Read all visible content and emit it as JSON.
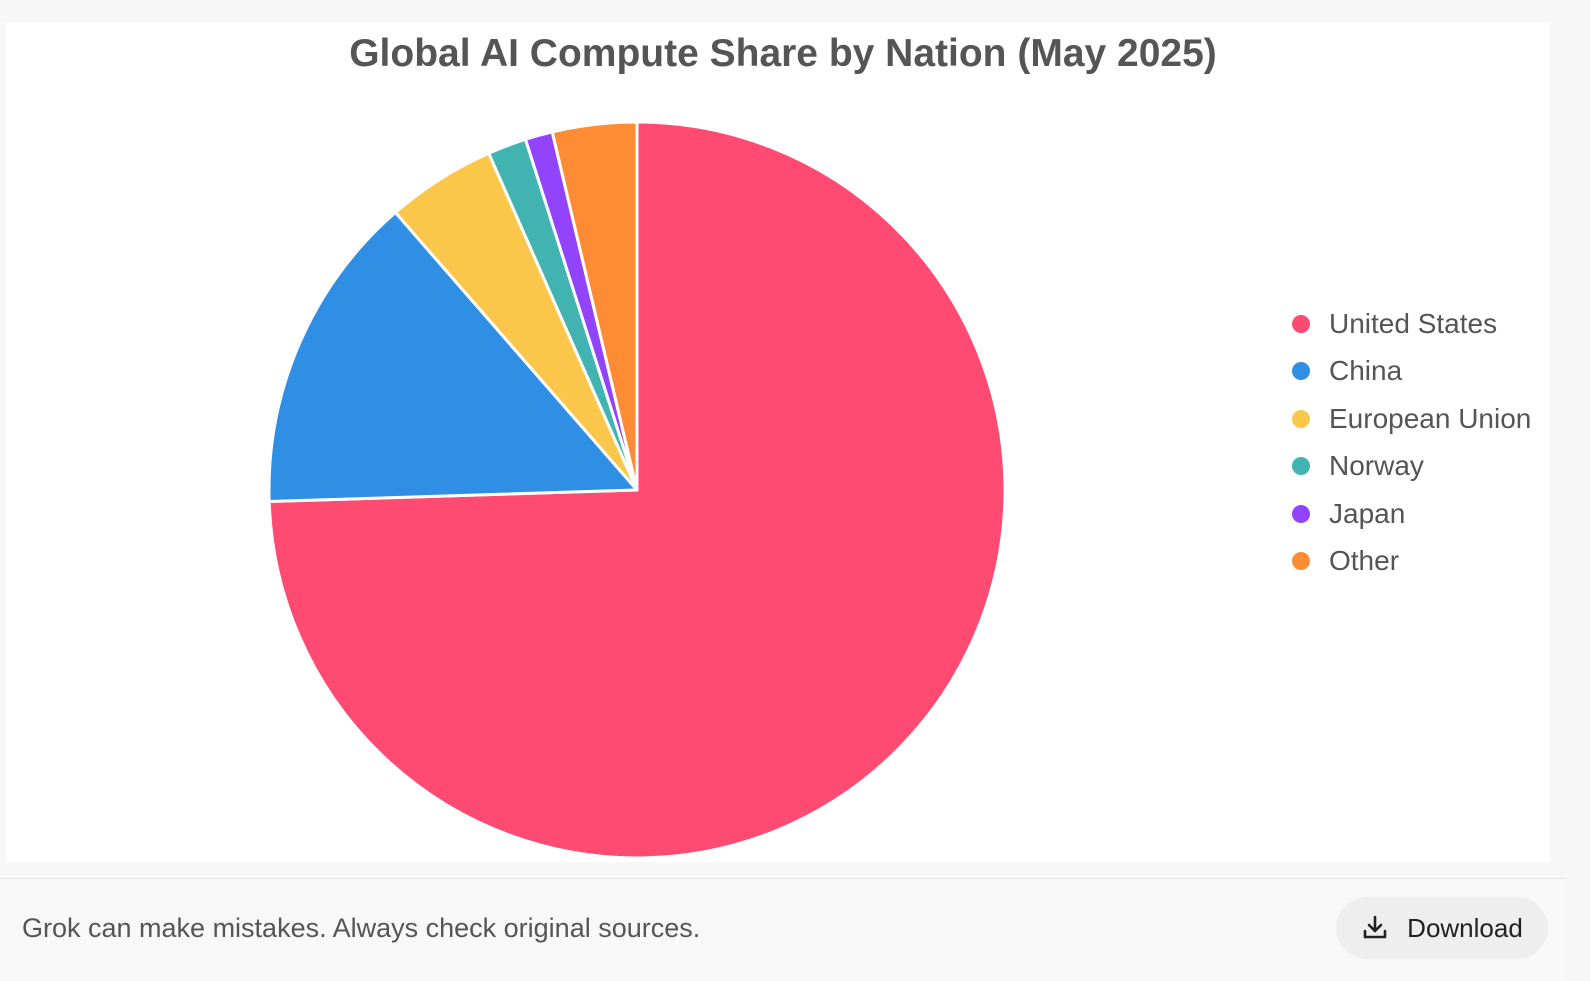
{
  "chart_data": {
    "type": "pie",
    "title": "Global AI Compute Share by Nation (May 2025)",
    "categories": [
      "United States",
      "China",
      "European Union",
      "Norway",
      "Japan",
      "Other"
    ],
    "values": [
      74.5,
      14.1,
      4.8,
      1.7,
      1.2,
      3.7
    ],
    "colors": [
      "#ff4a72",
      "#2f8fe5",
      "#fbc74b",
      "#41b4b1",
      "#9144fb",
      "#fe8c35"
    ],
    "legend": "right",
    "start_angle": "top",
    "direction": "clockwise"
  },
  "footer": {
    "disclaimer": "Grok can make mistakes. Always check original sources.",
    "download_label": "Download",
    "download_icon": "download-icon"
  }
}
